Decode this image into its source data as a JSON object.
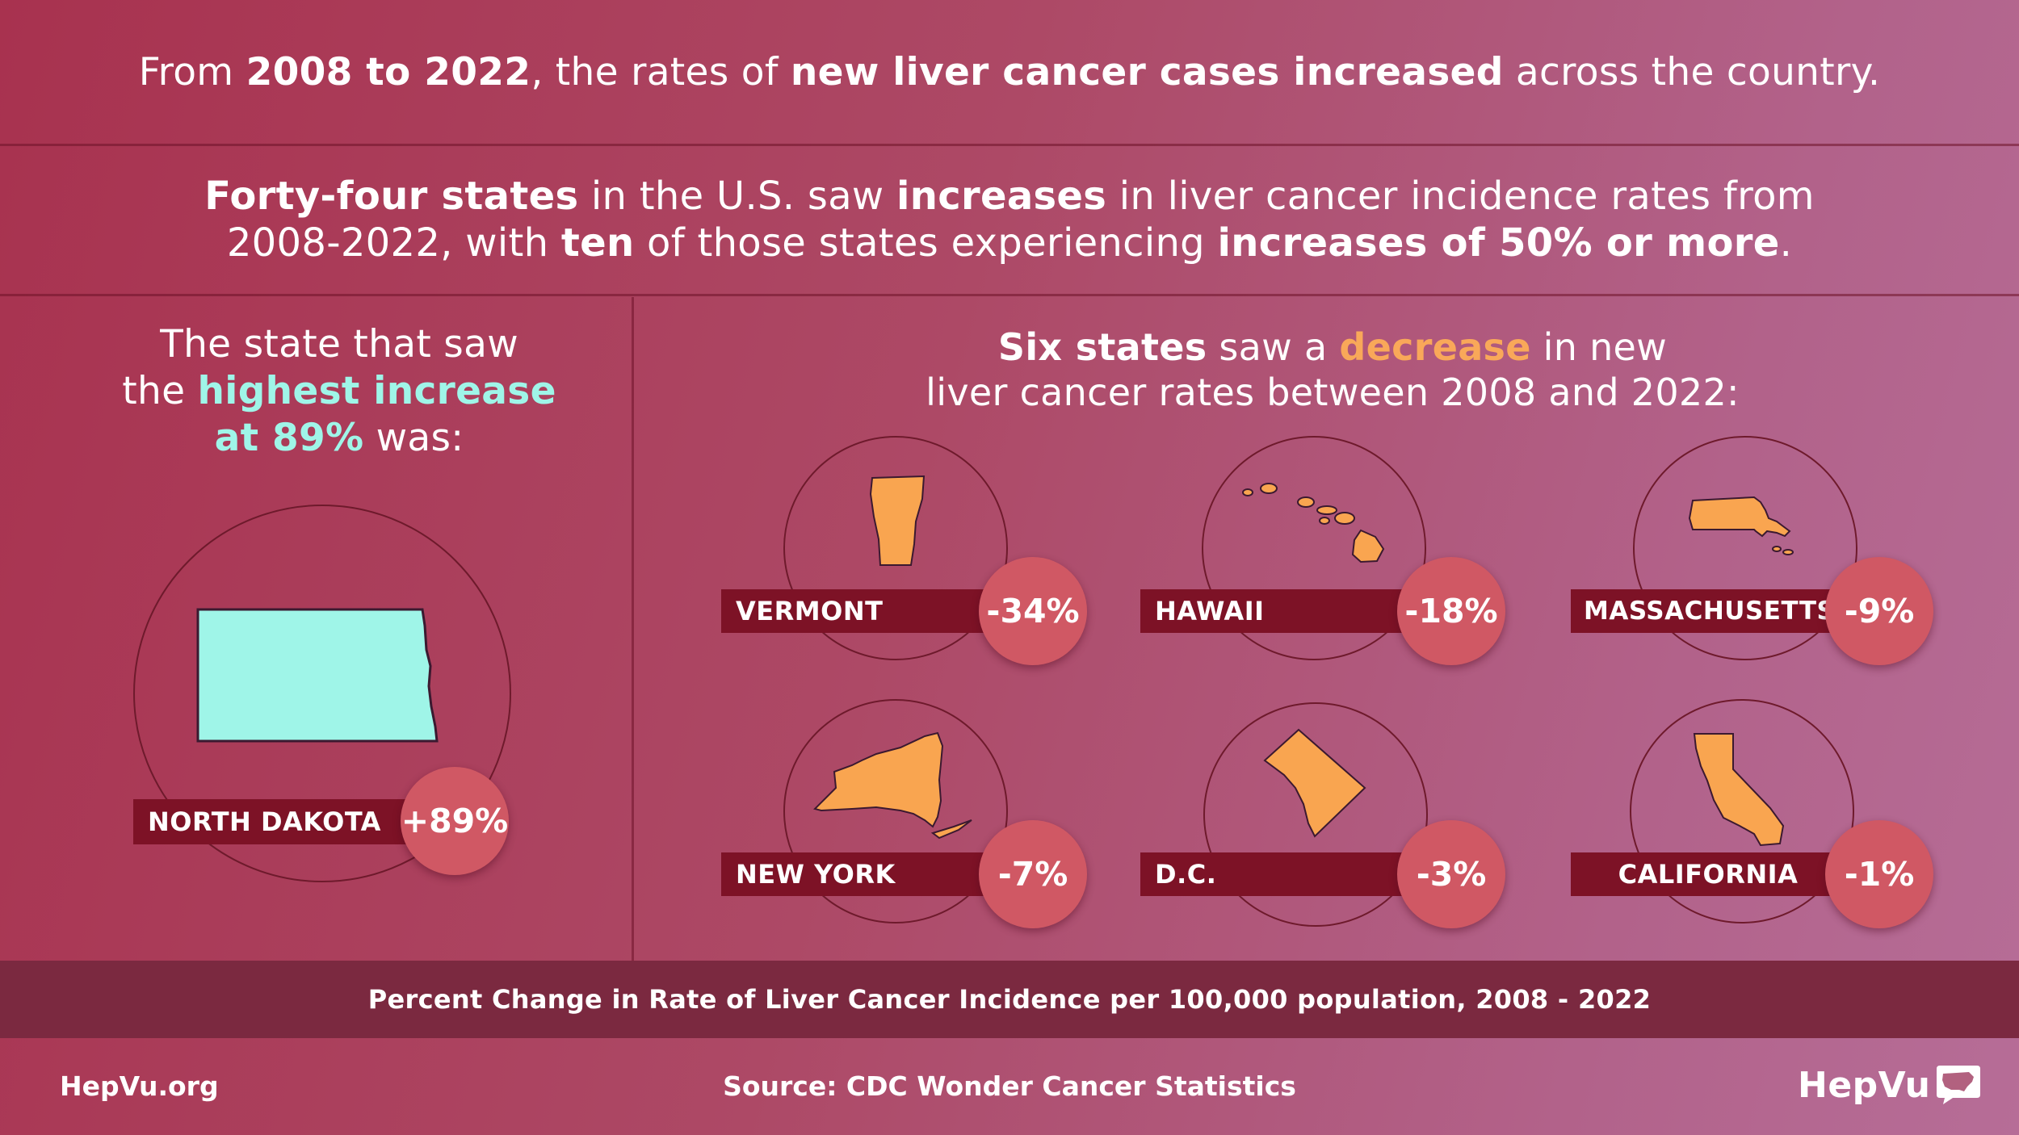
{
  "headline": {
    "part1": "From ",
    "years": "2008 to 2022",
    "part2": ", the rates of ",
    "emph": "new liver cancer cases increased",
    "part3": " across the country."
  },
  "summary": {
    "l1_a": "Forty-four states",
    "l1_b": " in the U.S. saw ",
    "l1_c": "increases",
    "l1_d": " in liver cancer incidence rates from",
    "l2_a": "2008-2022, with ",
    "l2_b": "ten",
    "l2_c": " of those states experiencing ",
    "l2_d": "increases of 50% or more",
    "l2_e": "."
  },
  "highest": {
    "line1": "The state that saw",
    "line2_a": "the ",
    "line2_b": "highest increase",
    "line3_a": "at 89%",
    "line3_b": " was:",
    "state": "NORTH DAKOTA",
    "value": "+89%",
    "fill_color": "#9ff5e8"
  },
  "decrease_heading": {
    "a": "Six states",
    "b": " saw a ",
    "c": "decrease",
    "d": " in new",
    "line2": "liver cancer rates between 2008 and 2022:"
  },
  "states": [
    {
      "name": "VERMONT",
      "value": "-34%",
      "shape": "vermont-icon"
    },
    {
      "name": "HAWAII",
      "value": "-18%",
      "shape": "hawaii-icon"
    },
    {
      "name": "MASSACHUSETTS",
      "value": "-9%",
      "shape": "massachusetts-icon"
    },
    {
      "name": "NEW YORK",
      "value": "-7%",
      "shape": "new-york-icon"
    },
    {
      "name": "D.C.",
      "value": "-3%",
      "shape": "dc-icon"
    },
    {
      "name": "CALIFORNIA",
      "value": "-1%",
      "shape": "california-icon"
    }
  ],
  "decrease_fill_color": "#f9a550",
  "footer": {
    "caption": "Percent Change in Rate of Liver Cancer Incidence per 100,000 population, 2008 - 2022",
    "site": "HepVu.org",
    "source": "Source: CDC Wonder Cancer Statistics",
    "logo": "HepVu"
  }
}
